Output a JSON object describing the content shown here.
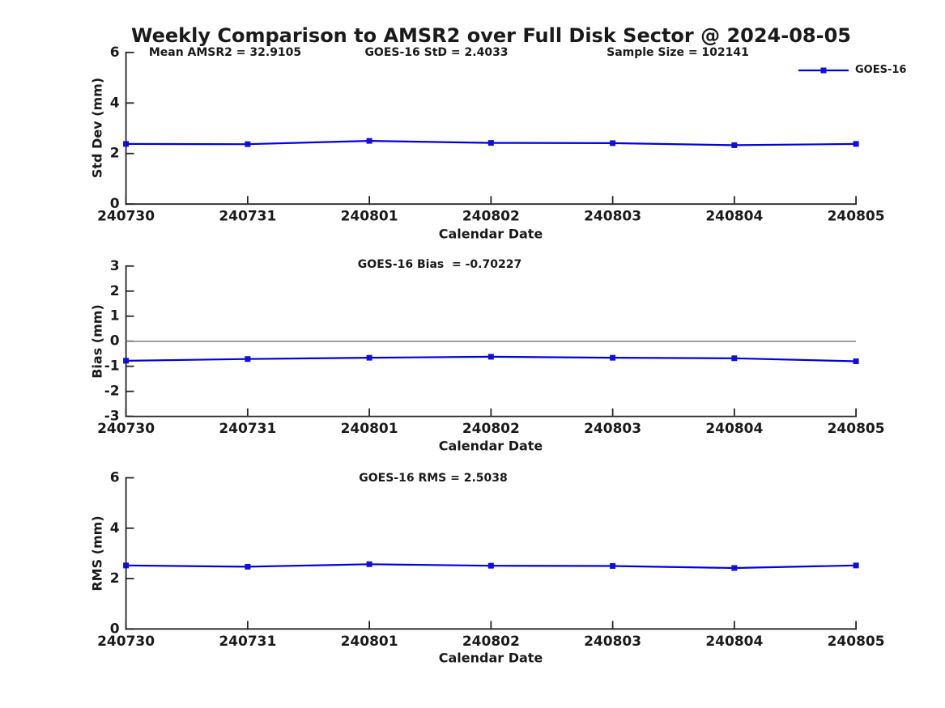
{
  "title": "Weekly Comparison to AMSR2 over Full Disk Sector @ 2024-08-05",
  "colors": {
    "line": "#0000dd",
    "marker": "#0f0fdd",
    "zero_line": "#808080",
    "axis": "#262626",
    "text": "#1a1a1a"
  },
  "legend": {
    "label": "GOES-16"
  },
  "chart_data": [
    {
      "type": "line",
      "panel": "std-dev",
      "categories": [
        "240730",
        "240731",
        "240801",
        "240802",
        "240803",
        "240804",
        "240805"
      ],
      "series": [
        {
          "name": "GOES-16",
          "values": [
            2.38,
            2.37,
            2.5,
            2.42,
            2.41,
            2.33,
            2.38
          ]
        }
      ],
      "annotations": [
        "Mean AMSR2 = 32.9105",
        "GOES-16 StD = 2.4033",
        "Sample Size = 102141"
      ],
      "xlabel": "Calendar Date",
      "ylabel": "Std Dev (mm)",
      "ylim": [
        0,
        6
      ],
      "yticks": [
        0,
        2,
        4,
        6
      ],
      "grid": false,
      "zero_line": false,
      "legend": "GOES-16",
      "legend_position": "top-right-outside"
    },
    {
      "type": "line",
      "panel": "bias",
      "categories": [
        "240730",
        "240731",
        "240801",
        "240802",
        "240803",
        "240804",
        "240805"
      ],
      "series": [
        {
          "name": "GOES-16",
          "values": [
            -0.78,
            -0.71,
            -0.66,
            -0.62,
            -0.66,
            -0.68,
            -0.8
          ]
        }
      ],
      "annotations": [
        "GOES-16 Bias  = -0.70227"
      ],
      "xlabel": "Calendar Date",
      "ylabel": "Bias (mm)",
      "ylim": [
        -3,
        3
      ],
      "yticks": [
        -3,
        -2,
        -1,
        0,
        1,
        2,
        3
      ],
      "grid": false,
      "zero_line": true
    },
    {
      "type": "line",
      "panel": "rms",
      "categories": [
        "240730",
        "240731",
        "240801",
        "240802",
        "240803",
        "240804",
        "240805"
      ],
      "series": [
        {
          "name": "GOES-16",
          "values": [
            2.52,
            2.47,
            2.57,
            2.51,
            2.5,
            2.42,
            2.52
          ]
        }
      ],
      "annotations": [
        "GOES-16 RMS = 2.5038"
      ],
      "xlabel": "Calendar Date",
      "ylabel": "RMS (mm)",
      "ylim": [
        0,
        6
      ],
      "yticks": [
        0,
        2,
        4,
        6
      ],
      "grid": false,
      "zero_line": false
    }
  ]
}
